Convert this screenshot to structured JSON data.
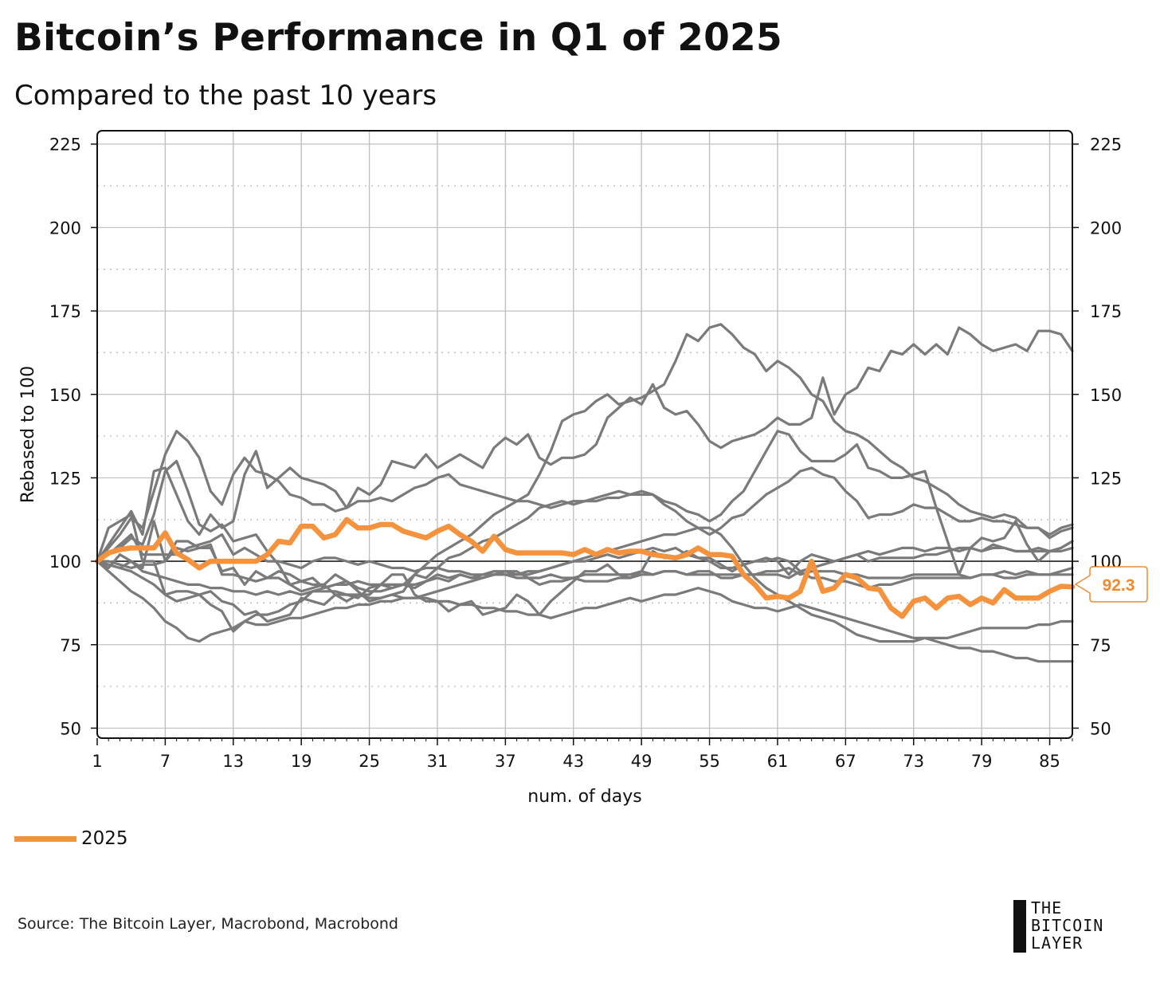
{
  "title": "Bitcoin’s Performance in Q1 of 2025",
  "subtitle": "Compared to the past 10 years",
  "source": "Source: The Bitcoin Layer, Macrobond, Macrobond",
  "logo": {
    "line1": "THE",
    "line2": "BITCOIN",
    "line3": "LAYER"
  },
  "colors": {
    "highlight": "#f5923e",
    "history": "#7a7a7a",
    "grid": "#c0c0c0"
  },
  "chart_data": {
    "type": "line",
    "title": "Bitcoin’s Performance in Q1 of 2025",
    "xlabel": "num. of days",
    "ylabel": "Rebased to 100",
    "xlim": [
      1,
      87
    ],
    "ylim": [
      47,
      229
    ],
    "x_ticks": [
      1,
      7,
      13,
      19,
      25,
      31,
      37,
      43,
      49,
      55,
      61,
      67,
      73,
      79,
      85
    ],
    "y_ticks": [
      50,
      75,
      100,
      125,
      150,
      175,
      200,
      225
    ],
    "y_ticks_right": [
      50,
      75,
      100,
      125,
      150,
      175,
      200,
      225
    ],
    "y_minor_gridlines": [
      62.5,
      87.5,
      112.5,
      137.5,
      162.5,
      187.5,
      212.5
    ],
    "reference_line": 100,
    "grid": true,
    "legend": {
      "position": "bottom-left",
      "entries": [
        "2025"
      ]
    },
    "callout": {
      "series": "2025",
      "value": "92.3"
    },
    "highlight": {
      "name": "2025",
      "values": [
        100,
        102.5,
        103.5,
        104,
        104,
        104,
        108.5,
        102.5,
        100.5,
        98,
        100,
        100,
        100,
        100,
        100,
        102,
        106,
        105.5,
        110.5,
        110.5,
        107,
        108,
        112.5,
        110,
        110,
        111,
        111,
        109,
        108,
        107,
        109,
        110.5,
        108,
        106,
        103,
        107.5,
        103.5,
        102.5,
        102.5,
        102.5,
        102.5,
        102.5,
        102,
        103.5,
        102,
        103.5,
        102.5,
        103,
        103,
        102,
        101.5,
        101,
        102,
        104,
        102,
        102,
        101.5,
        96,
        93,
        89,
        89.5,
        89,
        91,
        100,
        91,
        92,
        96,
        95,
        92,
        91.5,
        86,
        83.5,
        88,
        89,
        86,
        89,
        89.5,
        87,
        89,
        87.5,
        91.5,
        89,
        89,
        89,
        91,
        92.5,
        92.3
      ]
    },
    "series": [
      {
        "values": [
          100,
          98,
          102,
          100,
          98,
          112,
          100,
          106,
          106,
          104,
          104,
          97,
          98,
          93,
          97,
          95,
          97,
          96,
          94,
          93,
          93,
          90,
          88,
          90,
          90,
          93,
          96,
          96,
          90,
          88,
          88,
          85,
          87,
          88,
          84,
          85,
          86,
          90,
          88,
          84,
          88,
          91,
          94,
          97,
          97,
          99,
          96,
          95,
          97,
          103,
          101,
          101,
          103,
          101,
          101,
          99,
          97,
          99,
          100,
          101,
          100,
          96,
          100,
          102,
          101,
          100,
          101,
          102,
          100,
          101,
          101,
          101,
          101,
          102,
          102,
          103,
          104,
          104,
          103,
          105,
          104,
          103,
          103,
          104,
          103,
          104,
          106
        ]
      },
      {
        "values": [
          100,
          110,
          112,
          114,
          100,
          100,
          90,
          91,
          91,
          90,
          91,
          88,
          87,
          84,
          85,
          82,
          83,
          84,
          89,
          88,
          87,
          90,
          90,
          89,
          92,
          93,
          92,
          93,
          92,
          94,
          96,
          95,
          96,
          95,
          96,
          96,
          96,
          95,
          95,
          93,
          94,
          94,
          95,
          94,
          94,
          94,
          95,
          95,
          96,
          96,
          97,
          97,
          96,
          96,
          96,
          96,
          96,
          96,
          96,
          97,
          97,
          98,
          96,
          97,
          97,
          97,
          96,
          96,
          95,
          95,
          95,
          95,
          96,
          96,
          96,
          96,
          96,
          95,
          96,
          96,
          97,
          96,
          97,
          96,
          96,
          97,
          98
        ]
      },
      {
        "values": [
          100,
          100,
          99,
          98,
          99,
          99,
          100,
          104,
          103,
          104,
          105,
          96,
          96,
          95,
          94,
          95,
          95,
          93,
          94,
          95,
          92,
          93,
          93,
          94,
          93,
          93,
          93,
          93,
          93,
          94,
          95,
          94,
          96,
          95,
          95,
          96,
          97,
          97,
          95,
          95,
          96,
          95,
          95,
          96,
          96,
          96,
          96,
          96,
          97,
          96,
          97,
          97,
          96,
          97,
          97,
          95,
          95,
          96,
          96,
          96,
          96,
          95,
          97,
          95,
          95,
          94,
          94,
          93,
          92,
          93,
          93,
          94,
          95,
          95,
          95,
          95,
          95,
          95,
          96,
          96,
          95,
          95,
          96,
          96,
          96,
          96,
          96
        ]
      },
      {
        "values": [
          100,
          102,
          105,
          108,
          102,
          102,
          102,
          102,
          104,
          105,
          106,
          108,
          102,
          104,
          102,
          100,
          100,
          99,
          98,
          100,
          101,
          101,
          100,
          99,
          100,
          99,
          98,
          98,
          97,
          98,
          98,
          97,
          97,
          96,
          96,
          97,
          97,
          96,
          96,
          97,
          98,
          99,
          100,
          100,
          101,
          102,
          101,
          102,
          103,
          104,
          103,
          104,
          102,
          101,
          100,
          98,
          98,
          99,
          100,
          100,
          101,
          100,
          97,
          98,
          99,
          100,
          101,
          102,
          103,
          102,
          103,
          104,
          104,
          103,
          104,
          104,
          103,
          104,
          103,
          104,
          104,
          103,
          103,
          103,
          103,
          103,
          104
        ]
      },
      {
        "values": [
          100,
          105,
          110,
          115,
          108,
          127,
          128,
          120,
          112,
          108,
          114,
          110,
          112,
          126,
          133,
          122,
          125,
          128,
          125,
          124,
          123,
          121,
          116,
          122,
          120,
          123,
          130,
          129,
          128,
          132,
          128,
          130,
          132,
          130,
          128,
          134,
          137,
          135,
          138,
          131,
          129,
          131,
          131,
          132,
          135,
          143,
          146,
          149,
          147,
          153,
          146,
          144,
          145,
          141,
          136,
          134,
          136,
          137,
          138,
          140,
          143,
          141,
          141,
          143,
          155,
          144,
          150,
          152,
          158,
          157,
          163,
          162,
          165,
          162,
          165,
          162,
          170,
          168,
          165,
          163,
          164,
          165,
          163,
          169,
          169,
          168,
          163
        ]
      },
      {
        "values": [
          100,
          102,
          104,
          107,
          105,
          114,
          127,
          130,
          121,
          111,
          109,
          111,
          106,
          107,
          108,
          103,
          99,
          93,
          91,
          92,
          93,
          96,
          94,
          91,
          88,
          89,
          90,
          91,
          96,
          95,
          98,
          101,
          102,
          104,
          106,
          107,
          109,
          111,
          113,
          116,
          117,
          118,
          117,
          118,
          118,
          119,
          119,
          120,
          120,
          120,
          118,
          117,
          115,
          114,
          112,
          114,
          118,
          121,
          127,
          133,
          139,
          138,
          133,
          130,
          130,
          130,
          132,
          135,
          128,
          127,
          125,
          125,
          126,
          127,
          116,
          106,
          96,
          104,
          107,
          106,
          107,
          112,
          105,
          100,
          103,
          104,
          106
        ]
      },
      {
        "values": [
          100,
          104,
          108,
          113,
          110,
          121,
          132,
          139,
          136,
          131,
          121,
          117,
          126,
          131,
          127,
          126,
          124,
          120,
          119,
          117,
          117,
          115,
          116,
          118,
          118,
          119,
          118,
          120,
          122,
          123,
          125,
          126,
          123,
          122,
          121,
          120,
          119,
          118,
          118,
          117,
          116,
          117,
          118,
          118,
          119,
          120,
          121,
          120,
          121,
          120,
          117,
          115,
          112,
          110,
          108,
          110,
          113,
          114,
          117,
          120,
          122,
          124,
          127,
          128,
          126,
          125,
          121,
          118,
          113,
          114,
          114,
          115,
          117,
          116,
          116,
          114,
          112,
          112,
          113,
          112,
          112,
          111,
          110,
          110,
          108,
          110,
          111
        ]
      },
      {
        "values": [
          100,
          99,
          98,
          97,
          95,
          93,
          90,
          88,
          89,
          90,
          87,
          85,
          79,
          82,
          84,
          84,
          85,
          87,
          88,
          91,
          92,
          93,
          94,
          92,
          91,
          91,
          92,
          93,
          96,
          99,
          102,
          104,
          106,
          108,
          111,
          114,
          116,
          118,
          120,
          126,
          133,
          142,
          144,
          145,
          148,
          150,
          147,
          148,
          149,
          151,
          153,
          160,
          168,
          166,
          170,
          171,
          168,
          164,
          162,
          157,
          160,
          158,
          155,
          150,
          148,
          142,
          139,
          138,
          136,
          133,
          130,
          128,
          125,
          124,
          122,
          120,
          117,
          115,
          114,
          113,
          114,
          113,
          110,
          110,
          107,
          109,
          110
        ]
      },
      {
        "values": [
          100,
          97,
          94,
          91,
          89,
          86,
          82,
          80,
          77,
          76,
          78,
          79,
          80,
          82,
          81,
          81,
          82,
          83,
          83,
          84,
          85,
          86,
          86,
          87,
          87,
          88,
          88,
          89,
          89,
          90,
          91,
          92,
          93,
          94,
          95,
          96,
          96,
          96,
          97,
          97,
          98,
          99,
          100,
          101,
          102,
          103,
          104,
          105,
          106,
          107,
          108,
          108,
          109,
          110,
          110,
          108,
          104,
          99,
          95,
          92,
          90,
          88,
          86,
          84,
          83,
          82,
          80,
          78,
          77,
          76,
          76,
          76,
          76,
          77,
          77,
          77,
          78,
          79,
          80,
          80,
          80,
          80,
          80,
          81,
          81,
          82,
          82
        ]
      },
      {
        "values": [
          100,
          99,
          98,
          100,
          97,
          96,
          95,
          94,
          93,
          93,
          92,
          92,
          91,
          91,
          90,
          91,
          90,
          91,
          90,
          91,
          91,
          91,
          90,
          90,
          89,
          89,
          90,
          89,
          89,
          89,
          88,
          88,
          87,
          87,
          86,
          86,
          85,
          85,
          84,
          84,
          83,
          84,
          85,
          86,
          86,
          87,
          88,
          89,
          88,
          89,
          90,
          90,
          91,
          92,
          91,
          90,
          88,
          87,
          86,
          86,
          85,
          86,
          87,
          86,
          85,
          84,
          83,
          82,
          81,
          80,
          79,
          78,
          77,
          77,
          76,
          75,
          74,
          74,
          73,
          73,
          72,
          71,
          71,
          70,
          70,
          70,
          70
        ]
      }
    ]
  }
}
